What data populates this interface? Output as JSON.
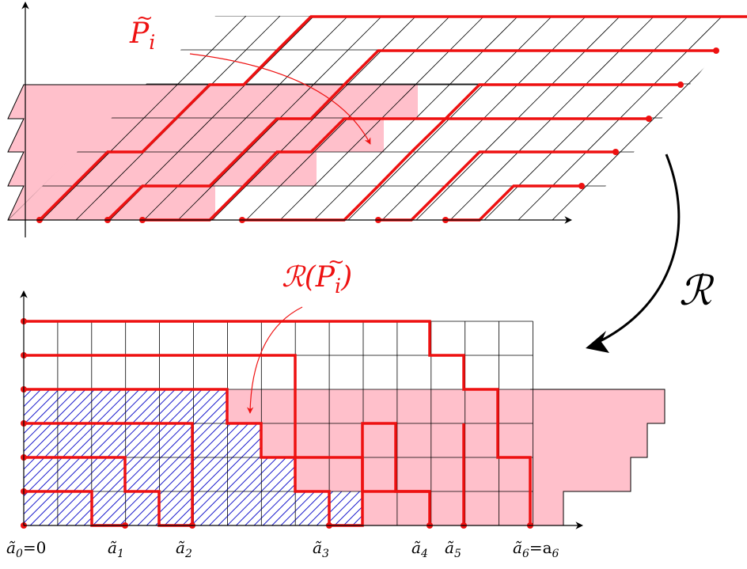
{
  "labels": {
    "top_path": "𝒫̃ᵢ",
    "top_path_base": "P",
    "top_path_sub": "i",
    "bottom_path_prefix": "ℛ(",
    "bottom_path_base": "P",
    "bottom_path_sub": "i",
    "bottom_path_suffix": ")",
    "map": "ℛ",
    "axis_ticks": [
      {
        "text": "ã",
        "sub": "0",
        "suffix": "=0"
      },
      {
        "text": "ã",
        "sub": "1",
        "suffix": ""
      },
      {
        "text": "ã",
        "sub": "2",
        "suffix": ""
      },
      {
        "text": "ã",
        "sub": "3",
        "suffix": ""
      },
      {
        "text": "ã",
        "sub": "4",
        "suffix": ""
      },
      {
        "text": "ã",
        "sub": "5",
        "suffix": ""
      },
      {
        "text": "ã",
        "sub": "6",
        "suffix": "=a",
        "suffix_sub": "6"
      }
    ]
  },
  "colors": {
    "path": "#ee1111",
    "shade": "#ffc0cb",
    "hatch": "#1a1acc",
    "grid": "#000000"
  }
}
